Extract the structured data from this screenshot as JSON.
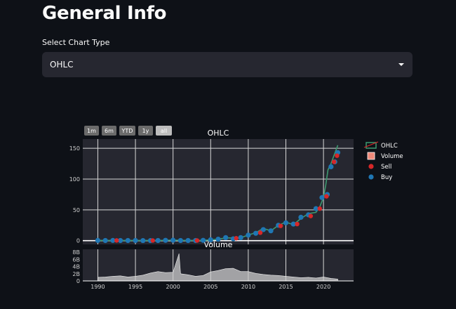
{
  "page": {
    "title": "General Info",
    "select_label": "Select Chart Type",
    "selected_value": "OHLC"
  },
  "range_selector": [
    {
      "label": "1m",
      "active": false
    },
    {
      "label": "6m",
      "active": false
    },
    {
      "label": "YTD",
      "active": false
    },
    {
      "label": "1y",
      "active": false
    },
    {
      "label": "all",
      "active": true
    }
  ],
  "colors": {
    "background": "#0e1117",
    "plot_bg": "#262730",
    "ohlc": "#3d9970",
    "sell": "#d62728",
    "buy": "#1f77b4",
    "volume": "#cccccc"
  },
  "chart_data": [
    {
      "type": "line",
      "title": "OHLC",
      "xlim": [
        1988.0,
        2024.0
      ],
      "ylim": [
        -6,
        165
      ],
      "yticks": [
        0,
        50,
        100,
        150
      ],
      "grid": true,
      "legend_position": "right",
      "legend": [
        {
          "name": "OHLC",
          "kind": "ohlc"
        },
        {
          "name": "Volume",
          "kind": "volume"
        },
        {
          "name": "Sell",
          "kind": "sell"
        },
        {
          "name": "Buy",
          "kind": "buy"
        }
      ],
      "series": [
        {
          "name": "OHLC",
          "x": [
            1990,
            1992,
            1994,
            1996,
            1998,
            2000,
            2002,
            2004,
            2005,
            2006,
            2007,
            2008,
            2009,
            2010,
            2011,
            2012,
            2013,
            2014,
            2015,
            2016,
            2017,
            2018,
            2019,
            2019.5,
            2020,
            2020.3,
            2020.6,
            2021,
            2021.3,
            2021.6,
            2021.9
          ],
          "y": [
            0.4,
            0.4,
            0.3,
            0.3,
            0.3,
            0.9,
            0.3,
            0.5,
            1.3,
            2.4,
            4.5,
            4.5,
            5,
            9,
            13,
            20,
            16,
            25,
            30,
            26,
            36,
            44,
            46,
            55,
            70,
            90,
            115,
            125,
            135,
            145,
            155
          ]
        },
        {
          "name": "Sell",
          "x": [
            1992.5,
            1997.3,
            2003.2,
            2008.4,
            2011.6,
            2014.3,
            2016.5,
            2018.3,
            2019.5,
            2020.4,
            2021.4,
            2021.8
          ],
          "y": [
            0.4,
            0.3,
            0.3,
            4.0,
            13,
            24,
            27,
            40,
            52,
            72,
            128,
            138
          ]
        },
        {
          "name": "Buy",
          "x": [
            1990,
            1991,
            1992,
            1993,
            1994,
            1995,
            1996,
            1997,
            1998,
            1999,
            2000,
            2001,
            2002,
            2003,
            2004,
            2005,
            2006,
            2007,
            2008,
            2009,
            2010,
            2011,
            2012,
            2013,
            2014,
            2015,
            2016,
            2017,
            2018,
            2019,
            2019.8,
            2020.5,
            2021,
            2021.5,
            2021.9
          ],
          "y": [
            0.4,
            0.3,
            0.4,
            0.3,
            0.3,
            0.3,
            0.2,
            0.2,
            0.3,
            0.6,
            0.8,
            0.3,
            0.3,
            0.3,
            0.6,
            1.5,
            2.5,
            5,
            3,
            5,
            9,
            12,
            18,
            16,
            25,
            29,
            27,
            38,
            42,
            52,
            70,
            75,
            120,
            128,
            143
          ]
        }
      ]
    },
    {
      "type": "area",
      "title": "Volume",
      "xlim": [
        1988.0,
        2024.0
      ],
      "ylim": [
        0,
        8800000000
      ],
      "yticks": [
        0,
        2000000000,
        4000000000,
        6000000000,
        8000000000
      ],
      "ytick_labels": [
        "0",
        "2B",
        "4B",
        "6B",
        "8B"
      ],
      "xticks": [
        1990,
        1995,
        2000,
        2005,
        2010,
        2015,
        2020
      ],
      "xtick_labels": [
        "1990",
        "1995",
        "2000",
        "2005",
        "2010",
        "2015",
        "2020"
      ],
      "series": [
        {
          "name": "Volume",
          "x": [
            1990,
            1991,
            1992,
            1993,
            1994,
            1995,
            1996,
            1997,
            1998,
            1999,
            2000,
            2000.8,
            2001,
            2002,
            2003,
            2004,
            2005,
            2006,
            2007,
            2008,
            2009,
            2010,
            2011,
            2012,
            2013,
            2014,
            2015,
            2016,
            2017,
            2018,
            2019,
            2020,
            2021,
            2021.9
          ],
          "y": [
            1000000000,
            1100000000,
            1300000000,
            1400000000,
            1100000000,
            1300000000,
            1600000000,
            2200000000,
            2600000000,
            2300000000,
            2400000000,
            7600000000,
            2000000000,
            1700000000,
            1300000000,
            1500000000,
            2500000000,
            2900000000,
            3400000000,
            3500000000,
            2600000000,
            2600000000,
            2100000000,
            1800000000,
            1600000000,
            1500000000,
            1300000000,
            1100000000,
            900000000,
            1000000000,
            800000000,
            1100000000,
            700000000,
            500000000
          ]
        }
      ]
    }
  ]
}
